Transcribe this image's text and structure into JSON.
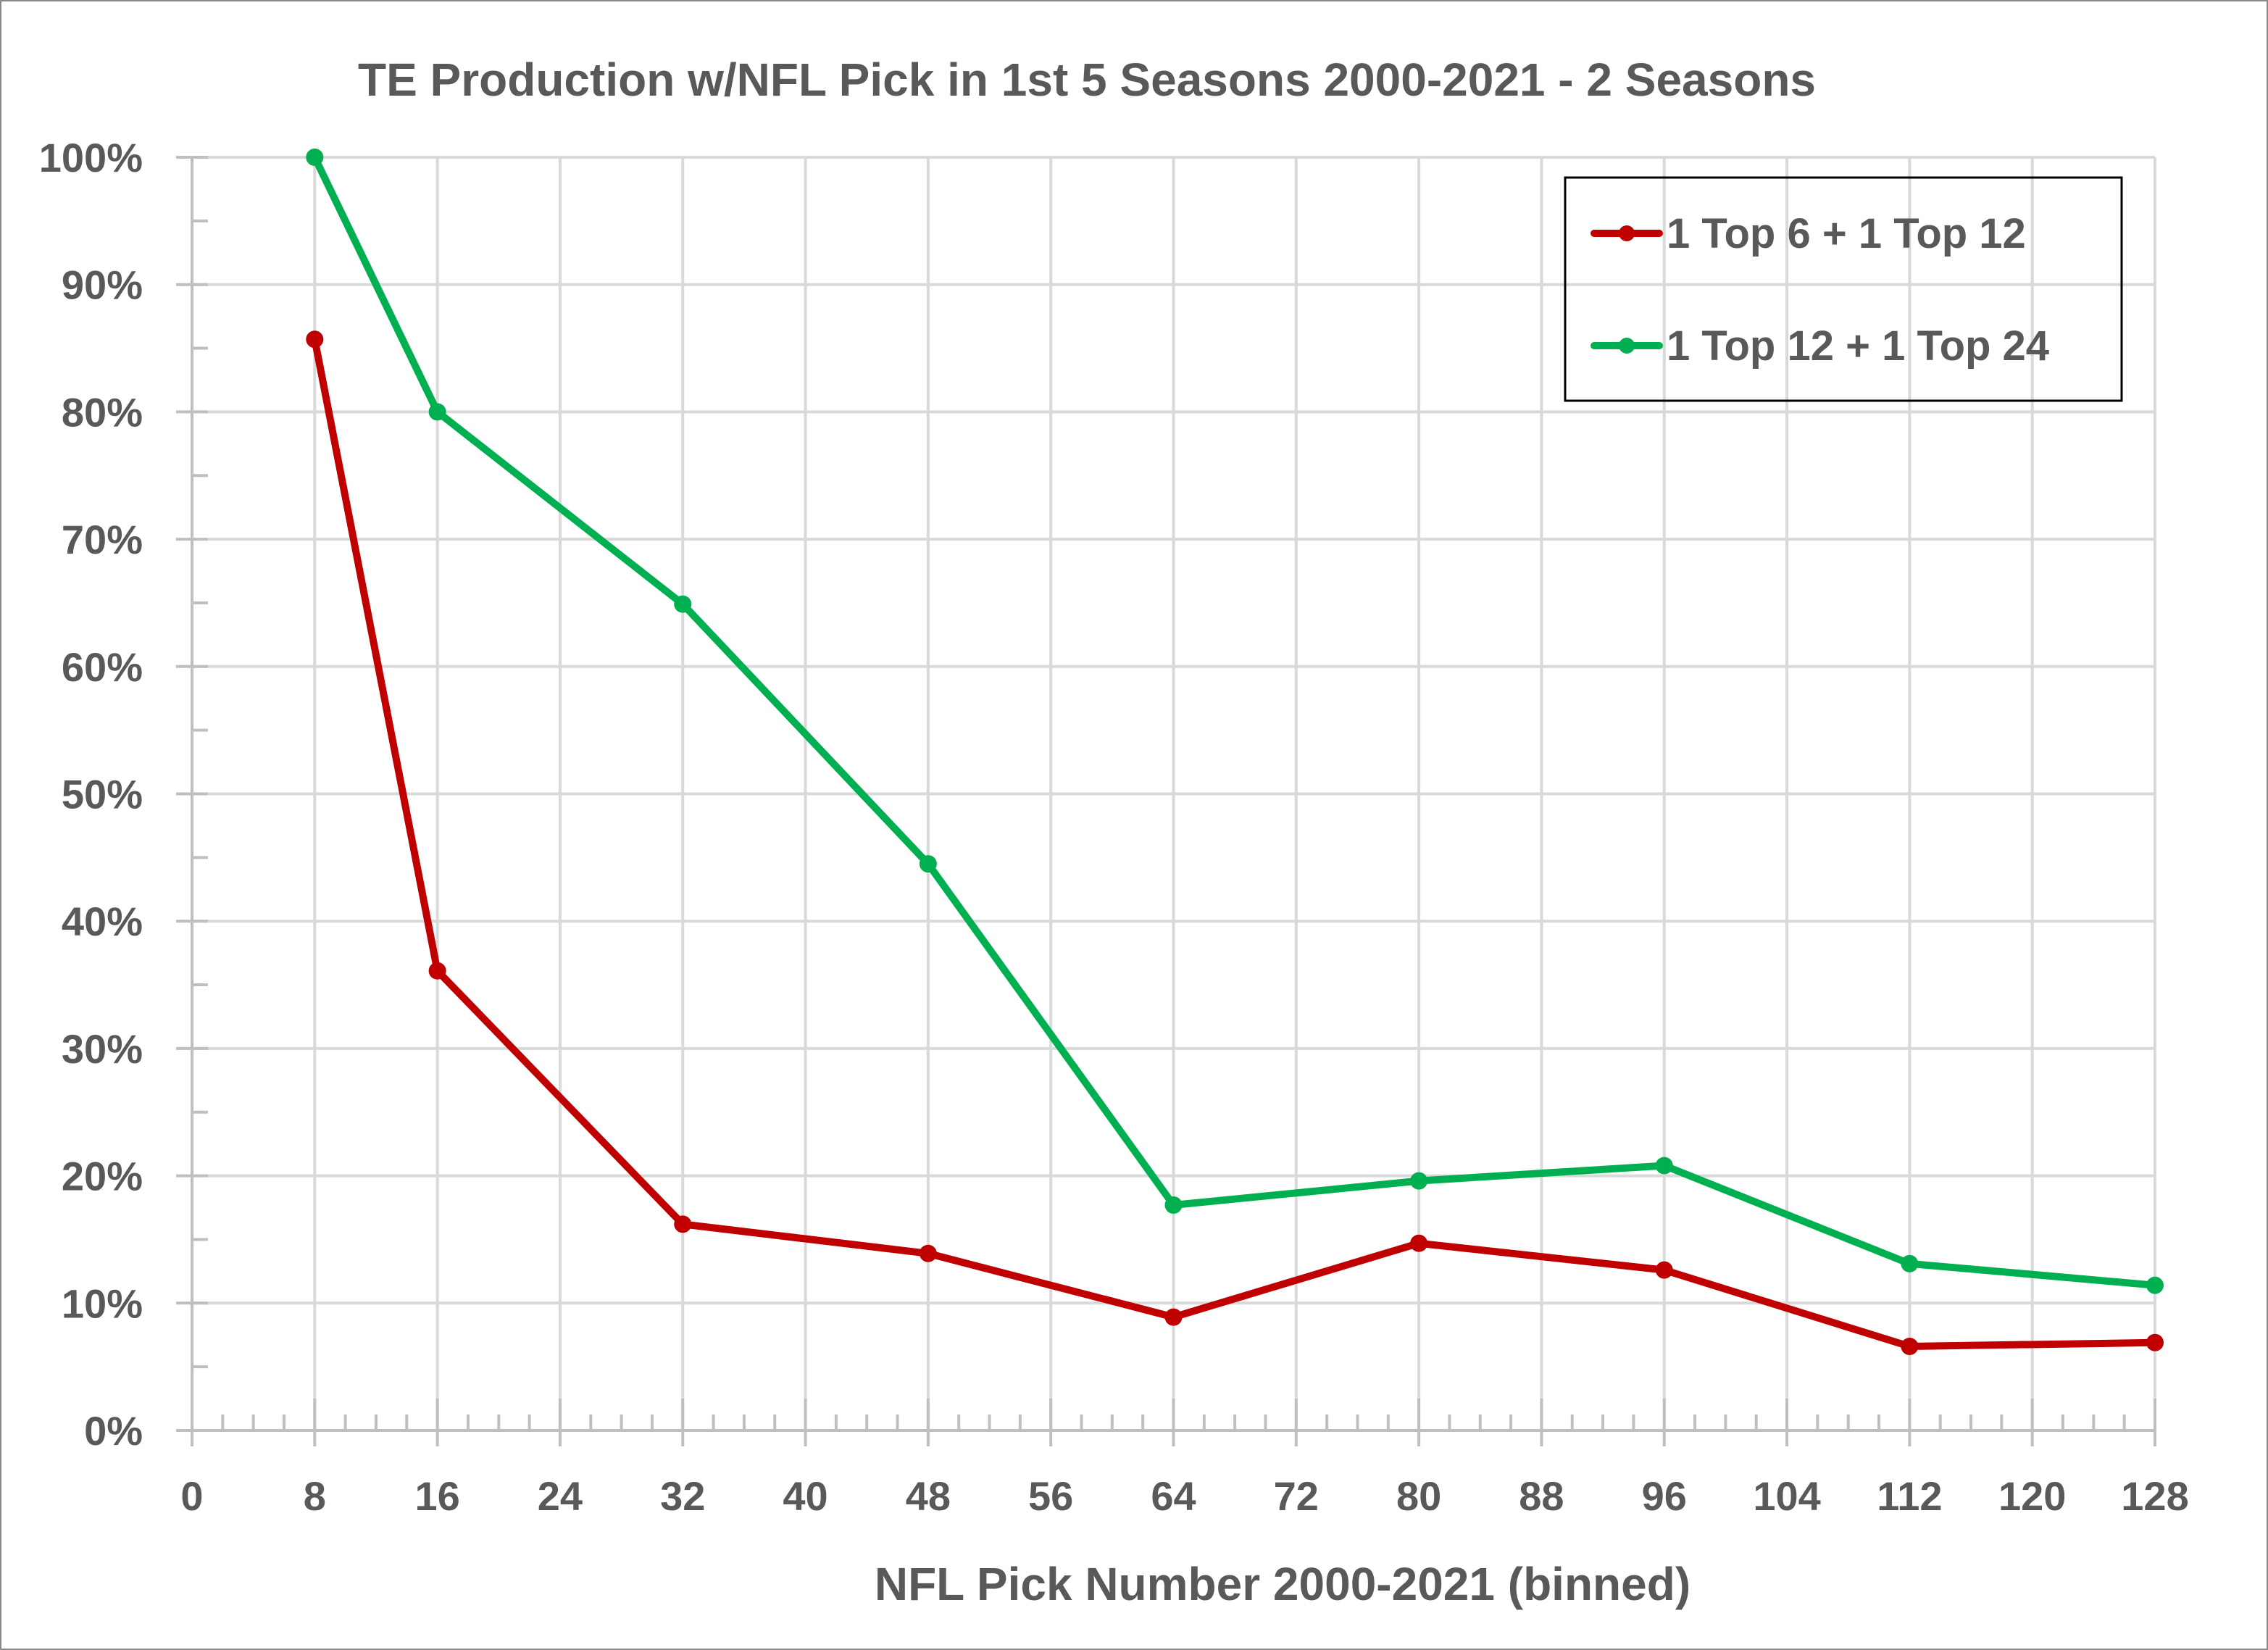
{
  "chart_data": {
    "type": "line",
    "title": "TE Production w/NFL Pick in 1st 5 Seasons 2000-2021 - 2 Seasons",
    "xlabel": "NFL Pick Number 2000-2021 (binned)",
    "ylabel": "",
    "x": [
      8,
      16,
      32,
      48,
      64,
      80,
      96,
      112,
      128
    ],
    "series": [
      {
        "name": "1 Top 6 + 1 Top 12",
        "color": "#C00000",
        "values": [
          0.857,
          0.361,
          0.162,
          0.139,
          0.089,
          0.147,
          0.126,
          0.066,
          0.069
        ]
      },
      {
        "name": "1 Top 12 + 1 Top 24",
        "color": "#00B050",
        "values": [
          1.0,
          0.8,
          0.649,
          0.445,
          0.177,
          0.196,
          0.208,
          0.131,
          0.114
        ]
      }
    ],
    "xlim": [
      0,
      128
    ],
    "ylim": [
      0,
      1
    ],
    "x_ticks": [
      "0",
      "8",
      "16",
      "24",
      "32",
      "40",
      "48",
      "56",
      "64",
      "72",
      "80",
      "88",
      "96",
      "104",
      "112",
      "120",
      "128"
    ],
    "x_tick_values": [
      0,
      8,
      16,
      24,
      32,
      40,
      48,
      56,
      64,
      72,
      80,
      88,
      96,
      104,
      112,
      120,
      128
    ],
    "y_ticks": [
      "0%",
      "10%",
      "20%",
      "30%",
      "40%",
      "50%",
      "60%",
      "70%",
      "80%",
      "90%",
      "100%"
    ],
    "y_tick_values": [
      0,
      0.1,
      0.2,
      0.3,
      0.4,
      0.5,
      0.6,
      0.7,
      0.8,
      0.9,
      1.0
    ],
    "grid": true,
    "legend_position": "top-right",
    "colors": {
      "text": "#595959",
      "grid": "#D9D9D9",
      "axis": "#BFBFBF",
      "border": "#898989",
      "legend_border": "#000000"
    }
  }
}
